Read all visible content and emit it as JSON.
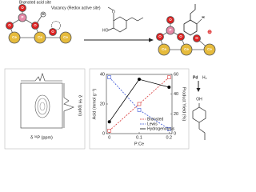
{
  "scheme": {
    "left_atoms": [
      "Ce",
      "Ce",
      "Ce",
      "O",
      "O",
      "O",
      "P",
      "H",
      "O"
    ],
    "bronsted_label": "Brønsted acid site",
    "vacancy_label": "Vacancy (Redox active site)",
    "reagent_atoms": [
      "HO",
      "O"
    ],
    "right_atoms": [
      "Ce",
      "Ce",
      "Ce",
      "O",
      "O",
      "P",
      "O",
      "O",
      "H",
      "⊕"
    ],
    "catalyst": "Pd",
    "reductant": "H₂",
    "product_atoms": [
      "OH"
    ]
  },
  "nmr": {
    "x_label": "δ ³¹P (ppm)",
    "y_label": "δ ¹H (ppm)"
  },
  "chart_data": {
    "type": "line",
    "x_label": "P:Ce",
    "y_label": "Acid (mmol g⁻¹)",
    "y2_label": "Product Yield (%)",
    "x": [
      0,
      0.1,
      0.2
    ],
    "xlim": [
      -0.01,
      0.21
    ],
    "xticks": [
      0,
      0.1,
      0.2
    ],
    "ylim": [
      0,
      40
    ],
    "yticks": [
      0,
      20,
      40
    ],
    "y2lim": [
      0,
      60
    ],
    "y2ticks": [
      0,
      20,
      40,
      60
    ],
    "legend": "lower right",
    "series": [
      {
        "name": "Brønsted",
        "color": "#d83a3a",
        "linestyle": "dashed",
        "marker": "square",
        "values": [
          2,
          20,
          38
        ]
      },
      {
        "name": "Lewis",
        "color": "#3a55d8",
        "linestyle": "dashed",
        "marker": "square",
        "values": [
          38,
          16,
          3
        ]
      },
      {
        "name": "Hydrogenolysis",
        "color": "#000000",
        "linestyle": "solid",
        "marker": "circle",
        "axis": "y2",
        "values": [
          12,
          55,
          47
        ]
      }
    ]
  }
}
